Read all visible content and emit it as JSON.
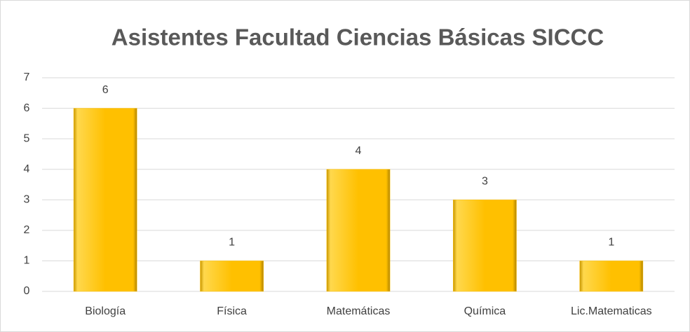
{
  "chart_data": {
    "type": "bar",
    "title": "Asistentes Facultad Ciencias Básicas SICCC",
    "categories": [
      "Biología",
      "Física",
      "Matemáticas",
      "Química",
      "Lic.Matematicas"
    ],
    "values": [
      6,
      1,
      4,
      3,
      1
    ],
    "color": "#ffc000",
    "ylim": [
      0,
      7
    ],
    "yticks": [
      0,
      1,
      2,
      3,
      4,
      5,
      6,
      7
    ],
    "grid": true,
    "data_labels": true
  }
}
